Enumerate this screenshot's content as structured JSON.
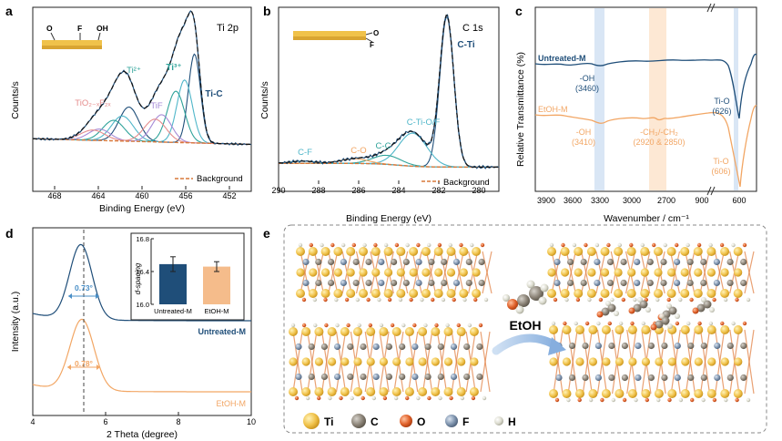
{
  "panel_labels": {
    "a": "a",
    "b": "b",
    "c": "c",
    "d": "d",
    "e": "e"
  },
  "colors": {
    "dark_blue": "#1f4e79",
    "cyan": "#4fb6c9",
    "teal": "#2fa39a",
    "pink": "#e58c8c",
    "purple": "#a58ad6",
    "orange": "#f2a664",
    "fit_black": "#111111",
    "blue_band": "#cfe0f3",
    "orange_band": "#fde6cf"
  },
  "chart_data": [
    {
      "id": "a",
      "type": "line",
      "title": "Ti 2p",
      "xlabel": "Binding Energy (eV)",
      "ylabel": "Counts/s",
      "xlim": [
        470,
        450
      ],
      "xticks": [
        "468",
        "464",
        "460",
        "456",
        "452"
      ],
      "xtick_values": [
        468,
        464,
        460,
        456,
        452
      ],
      "annotations": [
        "Ti²⁺",
        "TiO₂₋ₓF₂ₓ",
        "TiF",
        "Ti³⁺",
        "Ti-C"
      ],
      "inset_labels": [
        "O",
        "F",
        "OH"
      ],
      "legend": [
        "Background"
      ],
      "series": [
        {
          "name": "Ti-C",
          "color_key": "dark_blue",
          "peaks": [
            [
              455.2,
              0.78,
              0.55
            ],
            [
              461.2,
              0.3,
              0.9
            ]
          ]
        },
        {
          "name": "Ti³⁺",
          "color_key": "cyan",
          "peaks": [
            [
              456.1,
              0.55,
              0.7
            ],
            [
              461.8,
              0.22,
              1.0
            ]
          ]
        },
        {
          "name": "Ti²⁺",
          "color_key": "teal",
          "peaks": [
            [
              456.9,
              0.45,
              0.8
            ],
            [
              462.6,
              0.18,
              1.0
            ]
          ]
        },
        {
          "name": "TiF",
          "color_key": "purple",
          "peaks": [
            [
              458.2,
              0.24,
              0.9
            ],
            [
              463.9,
              0.1,
              1.0
            ]
          ]
        },
        {
          "name": "TiO₂₋ₓF₂ₓ",
          "color_key": "pink",
          "peaks": [
            [
              458.8,
              0.2,
              1.0
            ],
            [
              464.5,
              0.09,
              1.1
            ]
          ]
        }
      ]
    },
    {
      "id": "b",
      "type": "line",
      "title": "C 1s",
      "xlabel": "Binding Energy (eV)",
      "ylabel": "Counts/s",
      "xlim": [
        290,
        279
      ],
      "xticks": [
        "290",
        "288",
        "286",
        "284",
        "282",
        "280"
      ],
      "xtick_values": [
        290,
        288,
        286,
        284,
        282,
        280
      ],
      "annotations": [
        "C-Ti",
        "C-Ti-O/F",
        "C-C",
        "C-O",
        "C-F"
      ],
      "inset_labels": [
        "O",
        "F"
      ],
      "legend": [
        "Background"
      ],
      "series": [
        {
          "name": "C-Ti",
          "color_key": "dark_blue",
          "peaks": [
            [
              281.6,
              1.0,
              0.35
            ]
          ]
        },
        {
          "name": "C-Ti-O/F",
          "color_key": "cyan",
          "peaks": [
            [
              283.3,
              0.22,
              0.7
            ]
          ]
        },
        {
          "name": "C-C",
          "color_key": "teal",
          "peaks": [
            [
              284.6,
              0.06,
              0.7
            ]
          ]
        },
        {
          "name": "C-O",
          "color_key": "orange",
          "peaks": [
            [
              286.2,
              0.03,
              0.7
            ]
          ]
        },
        {
          "name": "C-F",
          "color_key": "cyan",
          "peaks": [
            [
              288.8,
              0.015,
              0.6
            ]
          ]
        }
      ]
    },
    {
      "id": "c",
      "type": "line",
      "xlabel": "Wavenumber / cm⁻¹",
      "ylabel": "Relative Transmittance (%)",
      "xticks": [
        "3900",
        "3600",
        "3300",
        "3000",
        "2700",
        "900",
        "600"
      ],
      "series": [
        {
          "name": "Untreated-M",
          "color_key": "dark_blue"
        },
        {
          "name": "EtOH-M",
          "color_key": "orange"
        }
      ],
      "annotations": {
        "untreated_oh": [
          "-OH",
          "(3460)"
        ],
        "untreated_tio": [
          "Ti-O",
          "(626)"
        ],
        "etoh_oh": [
          "-OH",
          "(3410)"
        ],
        "etoh_ch": [
          "-CH₃/-CH₂",
          "(2920 & 2850)"
        ],
        "etoh_tio": [
          "Ti-O",
          "(606)"
        ]
      }
    },
    {
      "id": "d",
      "type": "line",
      "xlabel": "2 Theta (degree)",
      "ylabel": "Intensity (a.u.)",
      "xlim": [
        4,
        10
      ],
      "xticks": [
        "4",
        "6",
        "8",
        "10"
      ],
      "xtick_values": [
        4,
        6,
        8,
        10
      ],
      "series": [
        {
          "name": "Untreated-M",
          "color_key": "dark_blue",
          "center": 5.32,
          "fwhm": 0.73
        },
        {
          "name": "EtOH-M",
          "color_key": "orange",
          "center": 5.35,
          "fwhm": 0.78
        }
      ],
      "fwhm_labels": [
        "0.73°",
        "0.78°"
      ],
      "inset": {
        "type": "bar",
        "ylabel": "d-spacing",
        "ylim": [
          16.0,
          16.8
        ],
        "yticks": [
          "16.0",
          "16.4",
          "16.8"
        ],
        "ytick_values": [
          16.0,
          16.4,
          16.8
        ],
        "categories": [
          "Untreated-M",
          "EtOH-M"
        ],
        "values": [
          16.49,
          16.46
        ],
        "errors": [
          0.09,
          0.06
        ],
        "color_keys": [
          "dark_blue",
          "orange"
        ]
      }
    }
  ],
  "panel_e": {
    "etoh_label": "EtOH",
    "legend": [
      {
        "symbol": "Ti",
        "color": "#f0c24a"
      },
      {
        "symbol": "C",
        "color": "#8c8478"
      },
      {
        "symbol": "O",
        "color": "#e0622b"
      },
      {
        "symbol": "F",
        "color": "#7e93ad"
      },
      {
        "symbol": "H",
        "color": "#dcdccf"
      }
    ]
  }
}
